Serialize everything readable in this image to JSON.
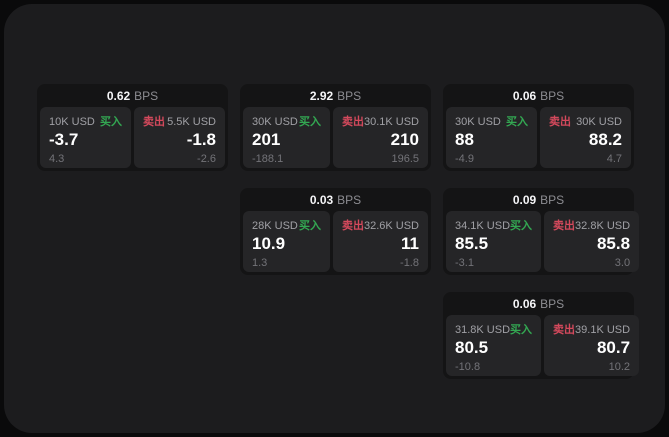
{
  "labels": {
    "buy": "买入",
    "sell": "卖出",
    "bps": "BPS"
  },
  "colors": {
    "buy": "#33a852",
    "sell": "#d4495c",
    "panel": "#1c1c1e",
    "card": "#141415",
    "cell": "#252527"
  },
  "cards": [
    {
      "spread": "0.62",
      "buy": {
        "amount": "10K USD",
        "price": "-3.7",
        "delta": "4.3"
      },
      "sell": {
        "amount": "5.5K USD",
        "price": "-1.8",
        "delta": "-2.6"
      }
    },
    {
      "spread": "2.92",
      "buy": {
        "amount": "30K USD",
        "price": "201",
        "delta": "-188.1"
      },
      "sell": {
        "amount": "30.1K USD",
        "price": "210",
        "delta": "196.5"
      }
    },
    {
      "spread": "0.06",
      "buy": {
        "amount": "30K USD",
        "price": "88",
        "delta": "-4.9"
      },
      "sell": {
        "amount": "30K USD",
        "price": "88.2",
        "delta": "4.7"
      }
    },
    {
      "spread": "0.03",
      "buy": {
        "amount": "28K USD",
        "price": "10.9",
        "delta": "1.3"
      },
      "sell": {
        "amount": "32.6K USD",
        "price": "11",
        "delta": "-1.8"
      }
    },
    {
      "spread": "0.09",
      "buy": {
        "amount": "34.1K USD",
        "price": "85.5",
        "delta": "-3.1"
      },
      "sell": {
        "amount": "32.8K USD",
        "price": "85.8",
        "delta": "3.0"
      }
    },
    {
      "spread": "0.06",
      "buy": {
        "amount": "31.8K USD",
        "price": "80.5",
        "delta": "-10.8"
      },
      "sell": {
        "amount": "39.1K USD",
        "price": "80.7",
        "delta": "10.2"
      }
    }
  ]
}
